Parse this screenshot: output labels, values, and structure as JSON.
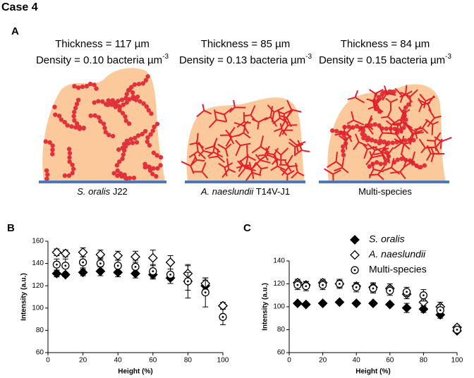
{
  "header": {
    "title": "Case 4"
  },
  "panel_a": {
    "label": "A",
    "items": [
      {
        "thickness": "Thickness = 117 µm",
        "density": "Density = 0.10 bacteria µm",
        "density_exp": "-3",
        "caption_italic": "S. oralis",
        "caption": "J22"
      },
      {
        "thickness": "Thickness = 85 µm",
        "density": "Density = 0.13 bacteria µm",
        "density_exp": "-3",
        "caption_italic": "A. naeslundii",
        "caption": "T14V-J1"
      },
      {
        "thickness": "Thickness = 84 µm",
        "density": "Density = 0.15 bacteria µm",
        "density_exp": "-3",
        "caption": "Multi-species"
      }
    ]
  },
  "chart_data": [
    {
      "type": "scatter",
      "label": "B",
      "xlabel": "Height (%)",
      "ylabel": "Intensity (a.u.)",
      "x": [
        5,
        10,
        20,
        30,
        40,
        50,
        60,
        70,
        80,
        90,
        100
      ],
      "xlim": [
        0,
        100
      ],
      "xticks": [
        0,
        20,
        40,
        60,
        80,
        100
      ],
      "ylim": [
        60,
        160
      ],
      "yticks": [
        60,
        80,
        100,
        120,
        140,
        160
      ],
      "series": [
        {
          "marker": "diamond-filled",
          "color": "#000000",
          "values": [
            131,
            130,
            132,
            133,
            132,
            131,
            130,
            127,
            124,
            120,
            102
          ],
          "errors": [
            3,
            2,
            3,
            4,
            4,
            4,
            4,
            5,
            15,
            5,
            3
          ]
        },
        {
          "marker": "diamond-open",
          "color": "#000000",
          "values": [
            150,
            149,
            150,
            148,
            147,
            146,
            145,
            141,
            131,
            122,
            102
          ],
          "errors": [
            3,
            3,
            4,
            4,
            4,
            5,
            7,
            6,
            7,
            5,
            3
          ]
        },
        {
          "marker": "circle-dot",
          "color": "#000000",
          "values": [
            139,
            138,
            141,
            140,
            138,
            137,
            133,
            130,
            124,
            114,
            92
          ],
          "errors": [
            5,
            6,
            5,
            5,
            5,
            6,
            6,
            5,
            8,
            13,
            7
          ]
        }
      ]
    },
    {
      "type": "scatter",
      "label": "C",
      "xlabel": "Height (%)",
      "ylabel": "Intensity (a.u.)",
      "x": [
        5,
        10,
        20,
        30,
        40,
        50,
        60,
        70,
        80,
        90,
        100
      ],
      "xlim": [
        0,
        100
      ],
      "xticks": [
        0,
        20,
        40,
        60,
        80,
        100
      ],
      "ylim": [
        60,
        140
      ],
      "yticks": [
        60,
        80,
        100,
        120,
        140
      ],
      "legend": "top-right",
      "series": [
        {
          "name": "S. oralis",
          "italic": true,
          "marker": "diamond-filled",
          "color": "#000000",
          "values": [
            103,
            102,
            103,
            104,
            103,
            103,
            102,
            99,
            98,
            93,
            79
          ],
          "errors": [
            1,
            1,
            1,
            1,
            1,
            1,
            1,
            4,
            3,
            3,
            1
          ]
        },
        {
          "name": "A. naeslundii",
          "italic": true,
          "marker": "diamond-open",
          "color": "#000000",
          "values": [
            121,
            119,
            121,
            120,
            118,
            117,
            116,
            111,
            104,
            100,
            82
          ],
          "errors": [
            3,
            3,
            3,
            3,
            3,
            4,
            4,
            4,
            6,
            4,
            2
          ]
        },
        {
          "name": "Multi-species",
          "marker": "circle-dot",
          "color": "#000000",
          "values": [
            119,
            118,
            119,
            120,
            117,
            116,
            114,
            113,
            110,
            97,
            80
          ],
          "errors": [
            4,
            4,
            4,
            4,
            4,
            4,
            4,
            4,
            5,
            5,
            2
          ]
        }
      ]
    }
  ]
}
